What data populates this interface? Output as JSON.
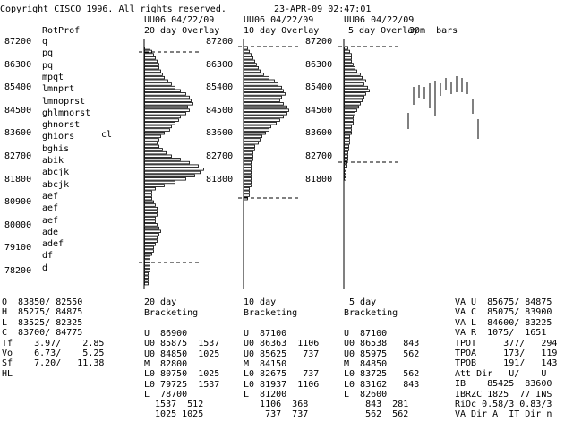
{
  "header": {
    "copyright": "Copyright CISCO 1996. All rights reserved.",
    "datetime": "23-APR-09 02:47:01"
  },
  "rotprof": {
    "title": "RotProf",
    "price_labels": [
      "87200",
      "86300",
      "85400",
      "84500",
      "83600",
      "82700",
      "81800",
      "80900",
      "80000",
      "79100",
      "78200"
    ],
    "rows": [
      "q",
      "pq",
      "pq",
      "mpqt",
      "lmnprt",
      "lmnoprst",
      "ghlmnorst",
      "ghnorst",
      "ghiors",
      "bghis",
      "abik",
      "abcjk",
      "abcjk",
      "aef",
      "aef",
      "aef",
      "ade",
      "adef",
      "df",
      "d"
    ],
    "marker": "cl"
  },
  "panels": [
    {
      "header": "UU06 04/22/09",
      "overlay": "20 day Overlay",
      "labels": [
        "87200",
        "86300",
        "85400",
        "84500",
        "83600",
        "82700",
        "81800"
      ]
    },
    {
      "header": "UU06 04/22/09",
      "overlay": "10 day Overlay",
      "labels": [
        "87200",
        "86300",
        "85400",
        "84500",
        "83600",
        "82700",
        "81800"
      ]
    },
    {
      "header": "UU06 04/22/09",
      "overlay": "5 day Overlay",
      "labels": [
        "87200",
        "86300",
        "85400",
        "84500",
        "83600",
        "82700"
      ]
    }
  ],
  "bars_label": "30m  bars",
  "ohlc": [
    "O  83850/ 82550",
    "H  85275/ 84875",
    "L  83525/ 82325",
    "C  83700/ 84775",
    "Tf    3.97/    2.85",
    "Vo    6.73/    5.25",
    "Sf    7.20/   11.38",
    "HL"
  ],
  "bracketing": [
    {
      "title1": "20 day",
      "title2": "Bracketing",
      "lines": [
        "U  86900",
        "U0 85875  1537",
        "U0 84850  1025",
        "M  82800",
        "L0 80750  1025",
        "L0 79725  1537",
        "L  78700",
        "  1537  512",
        "  1025 1025"
      ]
    },
    {
      "title1": "10 day",
      "title2": "Bracketing",
      "lines": [
        "U  87100",
        "U0 86363  1106",
        "U0 85625   737",
        "M  84150",
        "L0 82675   737",
        "L0 81937  1106",
        "L  81200",
        "   1106  368",
        "    737  737"
      ]
    },
    {
      "title1": " 5 day",
      "title2": "Bracketing",
      "lines": [
        "U  87100",
        "U0 86538   843",
        "U0 85975   562",
        "M  84850",
        "L0 83725   562",
        "L0 83162   843",
        "L  82600",
        "    843  281",
        "    562  562"
      ]
    }
  ],
  "value_area": [
    "VA U  85675/ 84875",
    "VA C  85075/ 83900",
    "VA L  84600/ 83225",
    "VA R  1075/  1651",
    "TPOT     377/   294",
    "TPOA     173/   119",
    "TPOB     191/   143",
    "Att Dir   U/    U",
    "IB    85425  83600",
    "IBRZC 1825  77 INS",
    "RiOc 0.58/3 0.83/3",
    "VA Dir A  IT Dir n"
  ],
  "colors": {
    "background": "#ffffff",
    "ink": "#000000"
  }
}
